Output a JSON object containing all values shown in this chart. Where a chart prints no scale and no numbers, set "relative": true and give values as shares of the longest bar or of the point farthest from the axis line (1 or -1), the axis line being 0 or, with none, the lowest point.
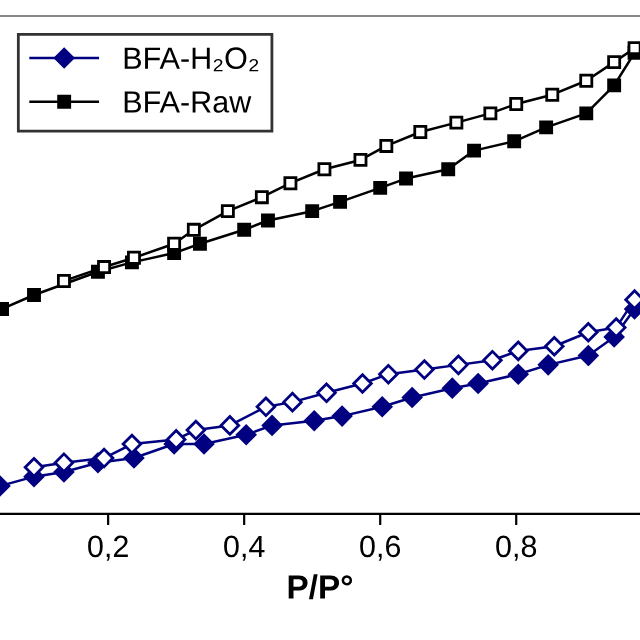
{
  "chart_data": {
    "type": "line",
    "relative": true,
    "xlabel": "P/P°",
    "xlim": [
      0.041,
      0.982
    ],
    "xticks": [
      {
        "value": 0.2,
        "label": "0,2"
      },
      {
        "value": 0.4,
        "label": "0,4"
      },
      {
        "value": 0.6,
        "label": "0,6"
      },
      {
        "value": 0.8,
        "label": "0,8"
      }
    ],
    "legend": "top left",
    "grid": false,
    "line_style": "solid",
    "series": [
      {
        "name": "BFA-H₂O₂",
        "color": "#000080",
        "marker": "diamond",
        "x": [
          0.041,
          0.091,
          0.135,
          0.185,
          0.238,
          0.297,
          0.341,
          0.403,
          0.441,
          0.503,
          0.544,
          0.603,
          0.647,
          0.706,
          0.744,
          0.803,
          0.847,
          0.906,
          0.944,
          0.974
        ],
        "values": [
          0.06,
          0.08,
          0.09,
          0.11,
          0.12,
          0.15,
          0.15,
          0.17,
          0.19,
          0.2,
          0.21,
          0.23,
          0.25,
          0.27,
          0.28,
          0.3,
          0.32,
          0.34,
          0.38,
          0.44
        ]
      },
      {
        "color": "#000080",
        "marker": "diamond",
        "x": [
          0.091,
          0.135,
          0.194,
          0.235,
          0.3,
          0.329,
          0.379,
          0.432,
          0.471,
          0.521,
          0.574,
          0.612,
          0.665,
          0.715,
          0.765,
          0.803,
          0.856,
          0.906,
          0.947,
          0.974
        ],
        "values": [
          0.1,
          0.11,
          0.12,
          0.15,
          0.16,
          0.18,
          0.19,
          0.23,
          0.24,
          0.26,
          0.28,
          0.3,
          0.31,
          0.32,
          0.33,
          0.35,
          0.36,
          0.39,
          0.4,
          0.46
        ]
      },
      {
        "name": "BFA-Raw",
        "color": "#000000",
        "marker": "square",
        "x": [
          0.044,
          0.091,
          0.185,
          0.235,
          0.297,
          0.335,
          0.4,
          0.435,
          0.5,
          0.541,
          0.6,
          0.638,
          0.7,
          0.738,
          0.797,
          0.844,
          0.903,
          0.944,
          0.974
        ],
        "values": [
          0.44,
          0.47,
          0.52,
          0.54,
          0.56,
          0.58,
          0.61,
          0.63,
          0.65,
          0.67,
          0.7,
          0.72,
          0.74,
          0.78,
          0.8,
          0.83,
          0.86,
          0.92,
          0.99
        ]
      },
      {
        "color": "#000000",
        "marker": "square",
        "x": [
          0.135,
          0.194,
          0.238,
          0.297,
          0.326,
          0.376,
          0.426,
          0.468,
          0.518,
          0.571,
          0.609,
          0.659,
          0.712,
          0.762,
          0.8,
          0.853,
          0.903,
          0.944,
          0.974
        ],
        "values": [
          0.5,
          0.53,
          0.55,
          0.58,
          0.61,
          0.65,
          0.68,
          0.71,
          0.74,
          0.76,
          0.79,
          0.82,
          0.84,
          0.86,
          0.88,
          0.9,
          0.93,
          0.97,
          1.0
        ]
      }
    ]
  }
}
